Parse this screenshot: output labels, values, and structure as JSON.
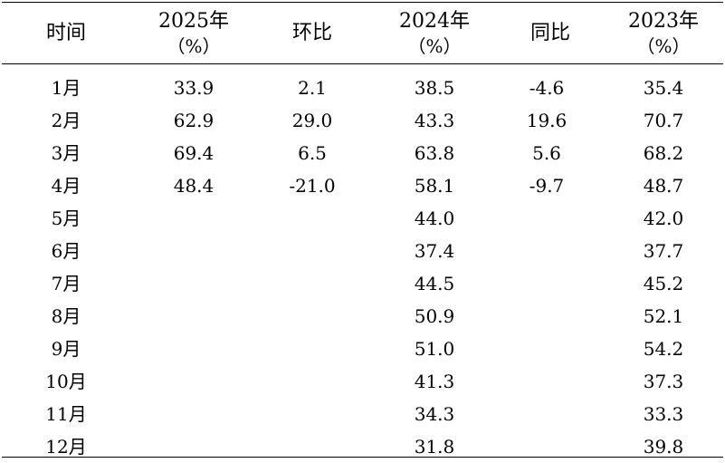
{
  "table": {
    "headers": [
      {
        "title": "时间",
        "unit": ""
      },
      {
        "title": "2025年",
        "unit": "（%）"
      },
      {
        "title": "环比",
        "unit": ""
      },
      {
        "title": "2024年",
        "unit": "（%）"
      },
      {
        "title": "同比",
        "unit": ""
      },
      {
        "title": "2023年",
        "unit": "（%）"
      }
    ],
    "rows": [
      {
        "month": "1月",
        "y2025": "33.9",
        "mom": "2.1",
        "y2024": "38.5",
        "yoy": "-4.6",
        "y2023": "35.4"
      },
      {
        "month": "2月",
        "y2025": "62.9",
        "mom": "29.0",
        "y2024": "43.3",
        "yoy": "19.6",
        "y2023": "70.7"
      },
      {
        "month": "3月",
        "y2025": "69.4",
        "mom": "6.5",
        "y2024": "63.8",
        "yoy": "5.6",
        "y2023": "68.2"
      },
      {
        "month": "4月",
        "y2025": "48.4",
        "mom": "-21.0",
        "y2024": "58.1",
        "yoy": "-9.7",
        "y2023": "48.7"
      },
      {
        "month": "5月",
        "y2025": "",
        "mom": "",
        "y2024": "44.0",
        "yoy": "",
        "y2023": "42.0"
      },
      {
        "month": "6月",
        "y2025": "",
        "mom": "",
        "y2024": "37.4",
        "yoy": "",
        "y2023": "37.7"
      },
      {
        "month": "7月",
        "y2025": "",
        "mom": "",
        "y2024": "44.5",
        "yoy": "",
        "y2023": "45.2"
      },
      {
        "month": "8月",
        "y2025": "",
        "mom": "",
        "y2024": "50.9",
        "yoy": "",
        "y2023": "52.1"
      },
      {
        "month": "9月",
        "y2025": "",
        "mom": "",
        "y2024": "51.0",
        "yoy": "",
        "y2023": "54.2"
      },
      {
        "month": "10月",
        "y2025": "",
        "mom": "",
        "y2024": "41.3",
        "yoy": "",
        "y2023": "37.3"
      },
      {
        "month": "11月",
        "y2025": "",
        "mom": "",
        "y2024": "34.3",
        "yoy": "",
        "y2023": "33.3"
      },
      {
        "month": "12月",
        "y2025": "",
        "mom": "",
        "y2024": "31.8",
        "yoy": "",
        "y2023": "39.8"
      }
    ]
  }
}
